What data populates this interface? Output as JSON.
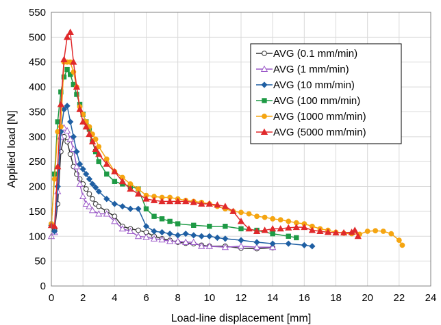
{
  "chart_data": {
    "type": "line",
    "xlabel": "Load-line displacement [mm]",
    "ylabel": "Applied load [N]",
    "xlim": [
      0,
      24
    ],
    "ylim": [
      0,
      550
    ],
    "xticks": [
      "0",
      "2",
      "4",
      "6",
      "8",
      "10",
      "12",
      "14",
      "16",
      "18",
      "20",
      "22",
      "24"
    ],
    "yticks": [
      "0",
      "50",
      "100",
      "150",
      "200",
      "250",
      "300",
      "350",
      "400",
      "450",
      "500",
      "550"
    ],
    "grid": true,
    "legend_position": "top-right",
    "series": [
      {
        "name": "AVG (0.1 mm/min)",
        "color": "#333333",
        "marker": "circle-open",
        "points": [
          [
            0,
            125
          ],
          [
            0.2,
            112
          ],
          [
            0.4,
            165
          ],
          [
            0.6,
            270
          ],
          [
            0.8,
            300
          ],
          [
            1,
            290
          ],
          [
            1.2,
            265
          ],
          [
            1.4,
            240
          ],
          [
            1.6,
            225
          ],
          [
            1.8,
            215
          ],
          [
            2,
            205
          ],
          [
            2.2,
            195
          ],
          [
            2.4,
            185
          ],
          [
            2.6,
            175
          ],
          [
            2.8,
            165
          ],
          [
            3,
            160
          ],
          [
            3.5,
            150
          ],
          [
            4,
            140
          ],
          [
            4.5,
            120
          ],
          [
            5,
            115
          ],
          [
            5.5,
            112
          ],
          [
            6,
            108
          ],
          [
            6.5,
            100
          ],
          [
            7,
            95
          ],
          [
            7.5,
            92
          ],
          [
            8,
            88
          ],
          [
            8.5,
            86
          ],
          [
            9,
            85
          ],
          [
            9.5,
            82
          ],
          [
            10,
            80
          ],
          [
            11,
            80
          ],
          [
            12,
            76
          ],
          [
            13,
            75
          ],
          [
            14,
            77
          ]
        ]
      },
      {
        "name": "AVG (1 mm/min)",
        "color": "#9b59c8",
        "marker": "triangle-open",
        "points": [
          [
            0,
            100
          ],
          [
            0.2,
            108
          ],
          [
            0.4,
            190
          ],
          [
            0.6,
            300
          ],
          [
            0.8,
            318
          ],
          [
            1,
            312
          ],
          [
            1.2,
            295
          ],
          [
            1.4,
            275
          ],
          [
            1.6,
            240
          ],
          [
            1.8,
            205
          ],
          [
            2,
            180
          ],
          [
            2.2,
            165
          ],
          [
            2.4,
            160
          ],
          [
            2.6,
            152
          ],
          [
            3,
            145
          ],
          [
            3.5,
            145
          ],
          [
            4,
            130
          ],
          [
            4.5,
            115
          ],
          [
            5,
            110
          ],
          [
            5.5,
            100
          ],
          [
            6,
            98
          ],
          [
            6.5,
            95
          ],
          [
            7,
            93
          ],
          [
            7.5,
            90
          ],
          [
            8,
            90
          ],
          [
            8.5,
            88
          ],
          [
            9,
            88
          ],
          [
            9.5,
            80
          ],
          [
            10,
            80
          ],
          [
            11,
            78
          ],
          [
            12,
            80
          ],
          [
            13,
            78
          ],
          [
            14,
            78
          ]
        ]
      },
      {
        "name": "AVG (10 mm/min)",
        "color": "#1f5fa3",
        "marker": "diamond",
        "points": [
          [
            0,
            122
          ],
          [
            0.2,
            110
          ],
          [
            0.4,
            200
          ],
          [
            0.6,
            310
          ],
          [
            0.8,
            355
          ],
          [
            1,
            362
          ],
          [
            1.2,
            330
          ],
          [
            1.4,
            300
          ],
          [
            1.6,
            270
          ],
          [
            1.8,
            245
          ],
          [
            2,
            235
          ],
          [
            2.2,
            225
          ],
          [
            2.4,
            215
          ],
          [
            2.6,
            205
          ],
          [
            2.8,
            198
          ],
          [
            3,
            190
          ],
          [
            3.5,
            175
          ],
          [
            4,
            165
          ],
          [
            4.5,
            160
          ],
          [
            5,
            155
          ],
          [
            5.5,
            155
          ],
          [
            6,
            120
          ],
          [
            6.5,
            110
          ],
          [
            7,
            108
          ],
          [
            7.5,
            105
          ],
          [
            8,
            102
          ],
          [
            8.5,
            105
          ],
          [
            9,
            102
          ],
          [
            9.5,
            100
          ],
          [
            10,
            100
          ],
          [
            10.5,
            97
          ],
          [
            11,
            95
          ],
          [
            12,
            92
          ],
          [
            13,
            88
          ],
          [
            14,
            85
          ],
          [
            15,
            85
          ],
          [
            16,
            82
          ],
          [
            16.5,
            80
          ]
        ]
      },
      {
        "name": "AVG (100 mm/min)",
        "color": "#1e9a45",
        "marker": "square",
        "points": [
          [
            0,
            122
          ],
          [
            0.2,
            225
          ],
          [
            0.4,
            330
          ],
          [
            0.6,
            390
          ],
          [
            0.8,
            420
          ],
          [
            1,
            435
          ],
          [
            1.2,
            425
          ],
          [
            1.4,
            405
          ],
          [
            1.6,
            385
          ],
          [
            1.8,
            365
          ],
          [
            2,
            345
          ],
          [
            2.2,
            330
          ],
          [
            2.4,
            315
          ],
          [
            2.6,
            290
          ],
          [
            2.8,
            270
          ],
          [
            3,
            250
          ],
          [
            3.5,
            225
          ],
          [
            4,
            210
          ],
          [
            4.5,
            205
          ],
          [
            5,
            200
          ],
          [
            5.5,
            195
          ],
          [
            6,
            155
          ],
          [
            6.5,
            140
          ],
          [
            7,
            135
          ],
          [
            7.5,
            130
          ],
          [
            8,
            125
          ],
          [
            9,
            122
          ],
          [
            10,
            120
          ],
          [
            11,
            120
          ],
          [
            12,
            115
          ],
          [
            13,
            112
          ],
          [
            14,
            105
          ],
          [
            15,
            100
          ],
          [
            15.5,
            97
          ]
        ]
      },
      {
        "name": "AVG (1000 mm/min)",
        "color": "#f5a511",
        "marker": "circle",
        "points": [
          [
            0,
            125
          ],
          [
            0.2,
            215
          ],
          [
            0.4,
            310
          ],
          [
            0.6,
            320
          ],
          [
            0.8,
            450
          ],
          [
            1,
            450
          ],
          [
            1.2,
            450
          ],
          [
            1.4,
            430
          ],
          [
            1.6,
            400
          ],
          [
            1.8,
            360
          ],
          [
            2,
            345
          ],
          [
            2.2,
            330
          ],
          [
            2.4,
            320
          ],
          [
            2.6,
            305
          ],
          [
            2.8,
            295
          ],
          [
            3,
            280
          ],
          [
            3.5,
            255
          ],
          [
            4,
            230
          ],
          [
            4.5,
            218
          ],
          [
            5,
            205
          ],
          [
            5.5,
            195
          ],
          [
            6,
            182
          ],
          [
            6.5,
            180
          ],
          [
            7,
            178
          ],
          [
            7.5,
            178
          ],
          [
            8,
            175
          ],
          [
            8.5,
            172
          ],
          [
            9,
            170
          ],
          [
            9.5,
            168
          ],
          [
            10,
            165
          ],
          [
            10.5,
            160
          ],
          [
            11,
            155
          ],
          [
            11.5,
            150
          ],
          [
            12,
            148
          ],
          [
            12.5,
            145
          ],
          [
            13,
            140
          ],
          [
            13.5,
            138
          ],
          [
            14,
            135
          ],
          [
            14.5,
            133
          ],
          [
            15,
            130
          ],
          [
            15.5,
            127
          ],
          [
            16,
            125
          ],
          [
            16.5,
            120
          ],
          [
            17,
            115
          ],
          [
            17.5,
            112
          ],
          [
            18,
            108
          ],
          [
            18.5,
            106
          ],
          [
            19,
            105
          ],
          [
            19.5,
            104
          ],
          [
            20,
            110
          ],
          [
            20.5,
            111
          ],
          [
            21,
            110
          ],
          [
            21.5,
            105
          ],
          [
            22,
            92
          ],
          [
            22.2,
            82
          ]
        ]
      },
      {
        "name": "AVG (5000 mm/min)",
        "color": "#e0292b",
        "marker": "triangle",
        "points": [
          [
            0,
            122
          ],
          [
            0.2,
            120
          ],
          [
            0.4,
            240
          ],
          [
            0.6,
            365
          ],
          [
            0.8,
            455
          ],
          [
            1,
            500
          ],
          [
            1.2,
            510
          ],
          [
            1.4,
            450
          ],
          [
            1.6,
            400
          ],
          [
            1.8,
            355
          ],
          [
            2,
            330
          ],
          [
            2.2,
            320
          ],
          [
            2.4,
            305
          ],
          [
            2.6,
            290
          ],
          [
            2.8,
            275
          ],
          [
            3,
            265
          ],
          [
            3.5,
            245
          ],
          [
            4,
            230
          ],
          [
            4.5,
            210
          ],
          [
            5,
            195
          ],
          [
            5.5,
            185
          ],
          [
            6,
            175
          ],
          [
            6.5,
            172
          ],
          [
            7,
            170
          ],
          [
            7.5,
            170
          ],
          [
            8,
            170
          ],
          [
            8.5,
            170
          ],
          [
            9,
            168
          ],
          [
            9.5,
            165
          ],
          [
            10,
            165
          ],
          [
            10.5,
            163
          ],
          [
            11,
            160
          ],
          [
            11.5,
            150
          ],
          [
            12,
            130
          ],
          [
            12.5,
            115
          ],
          [
            13,
            110
          ],
          [
            13.5,
            112
          ],
          [
            14,
            115
          ],
          [
            14.5,
            115
          ],
          [
            15,
            117
          ],
          [
            15.5,
            118
          ],
          [
            16,
            118
          ],
          [
            16.5,
            112
          ],
          [
            17,
            110
          ],
          [
            17.5,
            108
          ],
          [
            18,
            107
          ],
          [
            18.5,
            107
          ],
          [
            19,
            108
          ],
          [
            19.2,
            112
          ],
          [
            19.4,
            100
          ]
        ]
      }
    ]
  }
}
